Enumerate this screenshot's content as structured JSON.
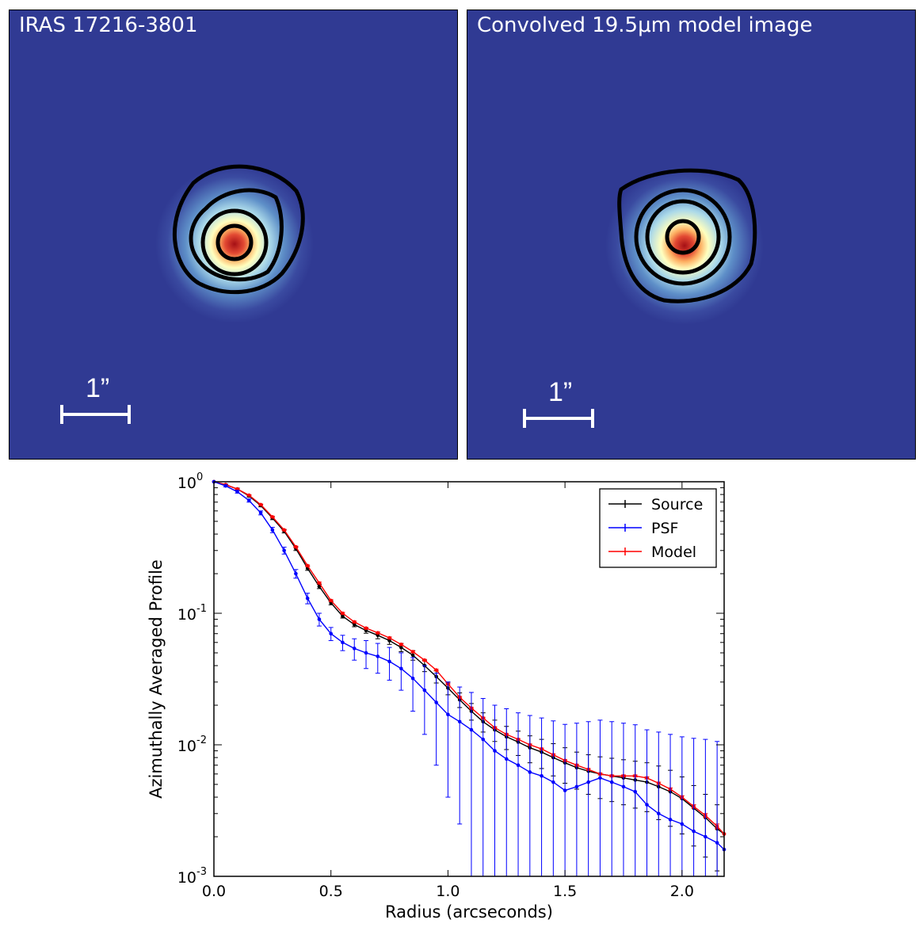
{
  "panels": {
    "left": {
      "title": "IRAS 17216-3801",
      "scale_label": "1”"
    },
    "right": {
      "title": "Convolved 19.5μm model image",
      "scale_label": "1”"
    }
  },
  "colors": {
    "background_map": "#303a93",
    "source": "#000000",
    "psf": "#0000ff",
    "model": "#ff0000"
  },
  "chart_data": {
    "type": "line",
    "xlabel": "Radius (arcseconds)",
    "ylabel": "Azimuthally Averaged Profile",
    "xlim": [
      0,
      2.18
    ],
    "ylim": [
      0.001,
      1
    ],
    "yscale": "log",
    "xticks": [
      {
        "v": 0.0,
        "label": "0.0"
      },
      {
        "v": 0.5,
        "label": "0.5"
      },
      {
        "v": 1.0,
        "label": "1.0"
      },
      {
        "v": 1.5,
        "label": "1.5"
      },
      {
        "v": 2.0,
        "label": "2.0"
      }
    ],
    "yticks": [
      {
        "v": 0.001,
        "base": "10",
        "exp": "-3"
      },
      {
        "v": 0.01,
        "base": "10",
        "exp": "-2"
      },
      {
        "v": 0.1,
        "base": "10",
        "exp": "-1"
      },
      {
        "v": 1,
        "base": "10",
        "exp": "0"
      }
    ],
    "legend": {
      "position": "top-right",
      "entries": [
        "Source",
        "PSF",
        "Model"
      ]
    },
    "series": [
      {
        "name": "Source",
        "color": "#000000",
        "x": [
          0.0,
          0.05,
          0.1,
          0.15,
          0.2,
          0.25,
          0.3,
          0.35,
          0.4,
          0.45,
          0.5,
          0.55,
          0.6,
          0.65,
          0.7,
          0.75,
          0.8,
          0.85,
          0.9,
          0.95,
          1.0,
          1.05,
          1.1,
          1.15,
          1.2,
          1.25,
          1.3,
          1.35,
          1.4,
          1.45,
          1.5,
          1.55,
          1.6,
          1.65,
          1.7,
          1.75,
          1.8,
          1.85,
          1.9,
          1.95,
          2.0,
          2.05,
          2.1,
          2.15,
          2.18
        ],
        "y": [
          1.0,
          0.95,
          0.88,
          0.78,
          0.66,
          0.53,
          0.42,
          0.31,
          0.22,
          0.16,
          0.12,
          0.095,
          0.082,
          0.074,
          0.068,
          0.062,
          0.055,
          0.048,
          0.04,
          0.033,
          0.027,
          0.022,
          0.018,
          0.015,
          0.013,
          0.0115,
          0.0105,
          0.0095,
          0.0088,
          0.008,
          0.0073,
          0.0067,
          0.0063,
          0.006,
          0.0058,
          0.0056,
          0.0054,
          0.0052,
          0.0048,
          0.0044,
          0.0039,
          0.0033,
          0.0028,
          0.0023,
          0.0021
        ],
        "err": [
          0,
          0.01,
          0.015,
          0.015,
          0.015,
          0.015,
          0.012,
          0.01,
          0.008,
          0.006,
          0.004,
          0.003,
          0.003,
          0.0035,
          0.004,
          0.004,
          0.004,
          0.004,
          0.004,
          0.0035,
          0.003,
          0.0028,
          0.0026,
          0.0025,
          0.0024,
          0.0023,
          0.0022,
          0.0022,
          0.0022,
          0.0022,
          0.0022,
          0.0021,
          0.0021,
          0.0021,
          0.0021,
          0.0021,
          0.0021,
          0.0021,
          0.0021,
          0.002,
          0.0018,
          0.0016,
          0.0014,
          0.0012,
          0
        ]
      },
      {
        "name": "PSF",
        "color": "#0000ff",
        "x": [
          0.0,
          0.05,
          0.1,
          0.15,
          0.2,
          0.25,
          0.3,
          0.35,
          0.4,
          0.45,
          0.5,
          0.55,
          0.6,
          0.65,
          0.7,
          0.75,
          0.8,
          0.85,
          0.9,
          0.95,
          1.0,
          1.05,
          1.1,
          1.15,
          1.2,
          1.25,
          1.3,
          1.35,
          1.4,
          1.45,
          1.5,
          1.55,
          1.6,
          1.65,
          1.7,
          1.75,
          1.8,
          1.85,
          1.9,
          1.95,
          2.0,
          2.05,
          2.1,
          2.15,
          2.18
        ],
        "y": [
          1.0,
          0.93,
          0.84,
          0.72,
          0.58,
          0.43,
          0.3,
          0.2,
          0.13,
          0.09,
          0.07,
          0.06,
          0.054,
          0.05,
          0.047,
          0.043,
          0.038,
          0.032,
          0.026,
          0.021,
          0.017,
          0.015,
          0.013,
          0.011,
          0.009,
          0.0078,
          0.007,
          0.0062,
          0.0058,
          0.0052,
          0.0045,
          0.0048,
          0.0052,
          0.0056,
          0.0052,
          0.0048,
          0.0044,
          0.0035,
          0.003,
          0.0027,
          0.0025,
          0.0022,
          0.002,
          0.0018,
          0.0016
        ],
        "err": [
          0,
          0.015,
          0.02,
          0.02,
          0.02,
          0.02,
          0.018,
          0.015,
          0.012,
          0.01,
          0.008,
          0.008,
          0.01,
          0.012,
          0.012,
          0.012,
          0.012,
          0.014,
          0.014,
          0.014,
          0.013,
          0.0125,
          0.012,
          0.0115,
          0.011,
          0.011,
          0.0105,
          0.0105,
          0.0102,
          0.01,
          0.0098,
          0.0098,
          0.0098,
          0.0098,
          0.0098,
          0.0098,
          0.0098,
          0.0095,
          0.0095,
          0.0093,
          0.009,
          0.009,
          0.009,
          0.0088,
          0
        ]
      },
      {
        "name": "Model",
        "color": "#ff0000",
        "x": [
          0.0,
          0.05,
          0.1,
          0.15,
          0.2,
          0.25,
          0.3,
          0.35,
          0.4,
          0.45,
          0.5,
          0.55,
          0.6,
          0.65,
          0.7,
          0.75,
          0.8,
          0.85,
          0.9,
          0.95,
          1.0,
          1.05,
          1.1,
          1.15,
          1.2,
          1.25,
          1.3,
          1.35,
          1.4,
          1.45,
          1.5,
          1.55,
          1.6,
          1.65,
          1.7,
          1.75,
          1.8,
          1.85,
          1.9,
          1.95,
          2.0,
          2.05,
          2.1,
          2.15,
          2.18
        ],
        "y": [
          1.0,
          0.95,
          0.88,
          0.79,
          0.67,
          0.54,
          0.43,
          0.32,
          0.23,
          0.17,
          0.125,
          0.1,
          0.086,
          0.077,
          0.071,
          0.065,
          0.058,
          0.051,
          0.044,
          0.037,
          0.029,
          0.023,
          0.019,
          0.016,
          0.0135,
          0.012,
          0.011,
          0.01,
          0.0093,
          0.0084,
          0.0076,
          0.007,
          0.0065,
          0.006,
          0.0058,
          0.0058,
          0.0058,
          0.0056,
          0.0051,
          0.0046,
          0.004,
          0.0034,
          0.0029,
          0.0024,
          0.0021
        ],
        "err": [
          0,
          0.005,
          0.006,
          0.006,
          0.006,
          0.006,
          0.005,
          0.004,
          0.003,
          0.0025,
          0.002,
          0.0015,
          0.0012,
          0.001,
          0.001,
          0.0009,
          0.0008,
          0.0007,
          0.0006,
          0.0005,
          0.0004,
          0.0003,
          0.00025,
          0.0002,
          0.00018,
          0.00016,
          0.00015,
          0.00014,
          0.00013,
          0.00012,
          0.00011,
          0.0001,
          0.0001,
          0.0001,
          0.0001,
          0.0001,
          0.0001,
          0.0001,
          0.0001,
          0.0001,
          0.0001,
          0.0001,
          0.0001,
          0.0001,
          0
        ]
      }
    ]
  }
}
